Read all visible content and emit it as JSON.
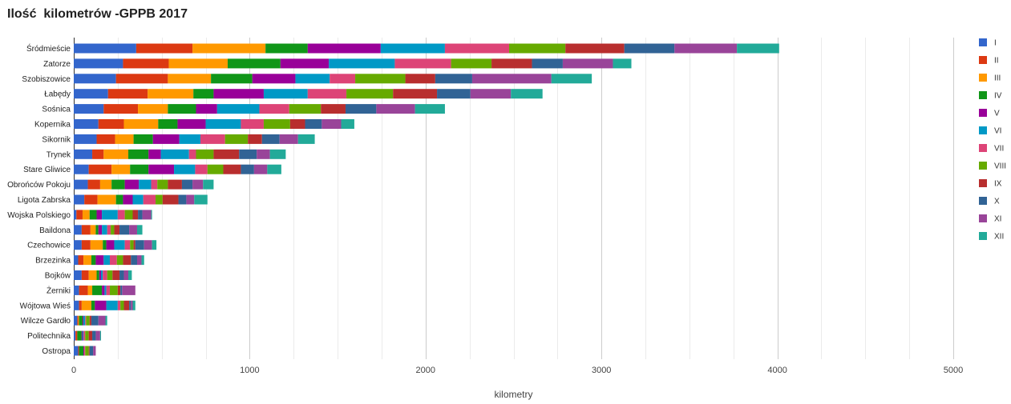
{
  "chart_data": {
    "type": "bar",
    "orientation": "horizontal",
    "stacked": true,
    "title": "Ilość  kilometrów -GPPB 2017",
    "xlabel": "kilometry",
    "ylabel": "",
    "xlim": [
      0,
      5000
    ],
    "xticks": [
      0,
      1000,
      2000,
      3000,
      4000,
      5000
    ],
    "grid": true,
    "legend_position": "right",
    "categories": [
      "Śródmieście",
      "Zatorze",
      "Szobiszowice",
      "Łabędy",
      "Sośnica",
      "Kopernika",
      "Sikornik",
      "Trynek",
      "Stare Gliwice",
      "Obrońców Pokoju",
      "Ligota Zabrska",
      "Wojska Polskiego",
      "Baildona",
      "Czechowice",
      "Brzezinka",
      "Bojków",
      "Żerniki",
      "Wójtowa Wieś",
      "Wilcze Gardło",
      "Politechnika",
      "Ostropa"
    ],
    "series": [
      {
        "name": "I",
        "color": "#3366cc",
        "values": [
          355,
          280,
          240,
          195,
          170,
          140,
          130,
          105,
          85,
          80,
          60,
          15,
          45,
          45,
          25,
          45,
          30,
          30,
          20,
          10,
          25
        ]
      },
      {
        "name": "II",
        "color": "#dc3912",
        "values": [
          320,
          260,
          295,
          225,
          195,
          145,
          105,
          65,
          130,
          70,
          75,
          35,
          50,
          50,
          30,
          40,
          50,
          15,
          5,
          10,
          5
        ]
      },
      {
        "name": "III",
        "color": "#ff9900",
        "values": [
          415,
          335,
          245,
          260,
          170,
          195,
          105,
          140,
          105,
          65,
          105,
          40,
          30,
          70,
          45,
          45,
          25,
          55,
          5,
          0,
          0
        ]
      },
      {
        "name": "IV",
        "color": "#109618",
        "values": [
          240,
          300,
          235,
          115,
          160,
          110,
          110,
          115,
          105,
          75,
          40,
          40,
          15,
          20,
          25,
          15,
          55,
          20,
          20,
          25,
          25
        ]
      },
      {
        "name": "V",
        "color": "#990099",
        "values": [
          415,
          275,
          245,
          285,
          120,
          160,
          150,
          70,
          145,
          80,
          55,
          30,
          20,
          45,
          45,
          10,
          15,
          65,
          5,
          5,
          5
        ]
      },
      {
        "name": "VI",
        "color": "#0099c6",
        "values": [
          365,
          375,
          195,
          250,
          240,
          200,
          120,
          160,
          120,
          70,
          60,
          90,
          30,
          60,
          35,
          10,
          10,
          65,
          10,
          5,
          0
        ]
      },
      {
        "name": "VII",
        "color": "#dd4477",
        "values": [
          365,
          320,
          145,
          220,
          170,
          130,
          140,
          40,
          70,
          35,
          70,
          40,
          20,
          30,
          40,
          25,
          20,
          15,
          5,
          10,
          5
        ]
      },
      {
        "name": "VIII",
        "color": "#66aa00",
        "values": [
          320,
          230,
          285,
          265,
          180,
          150,
          130,
          100,
          90,
          60,
          40,
          45,
          20,
          20,
          35,
          30,
          45,
          20,
          20,
          20,
          20
        ]
      },
      {
        "name": "IX",
        "color": "#b82e2e",
        "values": [
          335,
          230,
          170,
          250,
          140,
          85,
          80,
          145,
          100,
          80,
          90,
          30,
          30,
          10,
          45,
          40,
          15,
          30,
          10,
          20,
          5
        ]
      },
      {
        "name": "X",
        "color": "#316395",
        "values": [
          285,
          175,
          210,
          190,
          175,
          95,
          100,
          100,
          75,
          60,
          45,
          25,
          55,
          50,
          35,
          25,
          10,
          10,
          40,
          20,
          20
        ]
      },
      {
        "name": "XI",
        "color": "#994499",
        "values": [
          355,
          285,
          450,
          230,
          220,
          110,
          105,
          75,
          75,
          60,
          45,
          50,
          45,
          45,
          25,
          25,
          75,
          10,
          40,
          25,
          15
        ]
      },
      {
        "name": "XII",
        "color": "#22aa99",
        "values": [
          240,
          105,
          230,
          180,
          170,
          75,
          95,
          90,
          80,
          60,
          75,
          5,
          30,
          25,
          15,
          20,
          0,
          15,
          10,
          5,
          0
        ]
      }
    ]
  }
}
